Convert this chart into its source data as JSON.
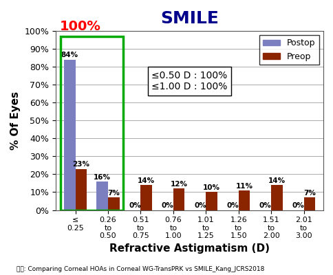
{
  "title": "SMILE",
  "xlabel": "Refractive Astigmatism (D)",
  "ylabel": "% Of Eyes",
  "footnote": "출처: Comparing Corneal HOAs in Corneal WG-TransPRK vs SMILE_Kang_JCRS2018",
  "categories": [
    "≤\n0.25",
    "0.26\nto\n0.50",
    "0.51\nto\n0.75",
    "0.76\nto\n1.00",
    "1.01\nto\n1.25",
    "1.26\nto\n1.50",
    "1.51\nto\n2.00",
    "2.01\nto\n3.00"
  ],
  "postop_values": [
    84,
    16,
    0,
    0,
    0,
    0,
    0,
    0
  ],
  "preop_values": [
    23,
    7,
    14,
    12,
    10,
    11,
    14,
    7
  ],
  "postop_color": "#7B7FBF",
  "preop_color": "#8B2500",
  "highlight_rect_color": "#00AA00",
  "annotation_100_color": "#FF0000",
  "annotation_100_text": "100%",
  "annotation_box_text": "≤0.50 D : 100%\n≤1.00 D : 100%",
  "ylim": [
    0,
    100
  ],
  "yticks": [
    0,
    10,
    20,
    30,
    40,
    50,
    60,
    70,
    80,
    90,
    100
  ],
  "ytick_labels": [
    "0%",
    "10%",
    "20%",
    "30%",
    "40%",
    "50%",
    "60%",
    "70%",
    "80%",
    "90%",
    "100%"
  ],
  "legend_labels": [
    "Postop",
    "Preop"
  ],
  "title_color": "#00008B",
  "title_fontsize": 18,
  "axis_label_fontsize": 11,
  "tick_fontsize": 9,
  "bar_width": 0.35
}
